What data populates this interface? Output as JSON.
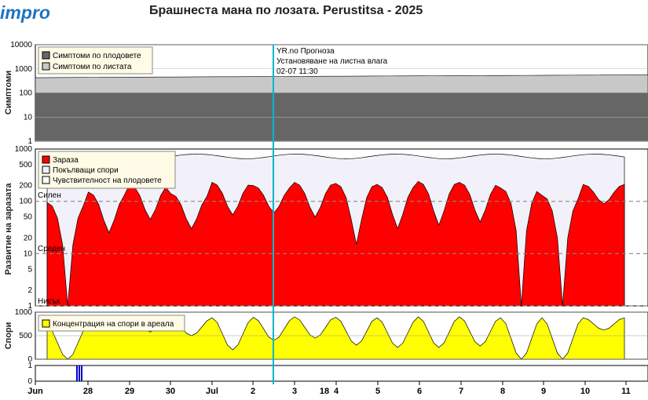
{
  "header": {
    "logo": "impro",
    "title": "Брашнеста мана по лозата.  Perustitsa - 2025"
  },
  "colors": {
    "fruit_symptoms": "#666666",
    "leaf_symptoms": "#c8c8c8",
    "infection": "#ff0000",
    "germinating": "#f2f0f8",
    "spores": "#ffff00",
    "now_line": "#00b7cf",
    "rain": "#0000cc"
  },
  "chart_data": [
    {
      "type": "area",
      "ylabel": "Симптоми",
      "yscale": "log",
      "ylim": [
        1,
        10000
      ],
      "yticks": [
        "10000",
        "1000",
        "100",
        "10",
        "1"
      ],
      "legend": [
        "Симптоми по плодовете",
        "Симптоми по листата"
      ],
      "legend_position": "top-left",
      "series": [
        {
          "name": "Симптоми по плодовете",
          "values_description": "constant",
          "value": 100
        },
        {
          "name": "Симптоми по листата",
          "start": 430,
          "end": 560
        }
      ]
    },
    {
      "type": "area",
      "ylabel": "Развитие на заразата",
      "yscale": "log",
      "ylim": [
        1,
        1000
      ],
      "yticks": [
        "1000",
        "500",
        "200",
        "100",
        "50",
        "20",
        "10",
        "5",
        "2",
        "1"
      ],
      "thresholds": [
        {
          "label": "Силен",
          "value": 100
        },
        {
          "label": "Среден",
          "value": 10
        },
        {
          "label": "Нисък",
          "value": 1
        }
      ],
      "legend": [
        "Зараза",
        "Покълващи спори",
        "Чувствителност на плодовете"
      ],
      "legend_position": "top-left",
      "infection_daily_peaks": [
        95,
        150,
        210,
        140,
        230,
        200,
        230,
        220,
        210,
        240,
        230,
        180,
        130,
        210
      ],
      "infection_daily_troughs": [
        1,
        25,
        45,
        30,
        55,
        60,
        50,
        15,
        30,
        35,
        40,
        1,
        1,
        90
      ],
      "germinating_level": [
        650,
        800
      ]
    },
    {
      "type": "area",
      "ylabel": "Спори",
      "ylim": [
        0,
        1000
      ],
      "yticks": [
        "1000",
        "500",
        "0"
      ],
      "legend": [
        "Концентрация на спори в ареала"
      ],
      "legend_position": "top-left",
      "spore_daily_peaks": [
        700,
        870,
        880,
        870,
        880,
        890,
        900,
        890,
        880,
        900,
        900,
        880,
        880,
        880
      ],
      "spore_daily_troughs": [
        0,
        620,
        580,
        500,
        200,
        400,
        450,
        300,
        250,
        250,
        280,
        0,
        0,
        620
      ]
    },
    {
      "type": "bar",
      "ylim": [
        0,
        1
      ],
      "yticks": [
        "1",
        "0"
      ],
      "rain_events": [
        "Jun 27",
        "Jun 27",
        "Jun 27"
      ]
    }
  ],
  "x_axis": {
    "labels": [
      "Jun",
      "28",
      "29",
      "30",
      "Jul",
      "2",
      "3",
      "4",
      "5",
      "6",
      "7",
      "8",
      "9",
      "10",
      "11"
    ],
    "extra_label": "18"
  },
  "forecast_note": {
    "line1": "YR.no Прогноза",
    "line2": "Установяване на листна влага",
    "line3": "02-07 11:30"
  }
}
